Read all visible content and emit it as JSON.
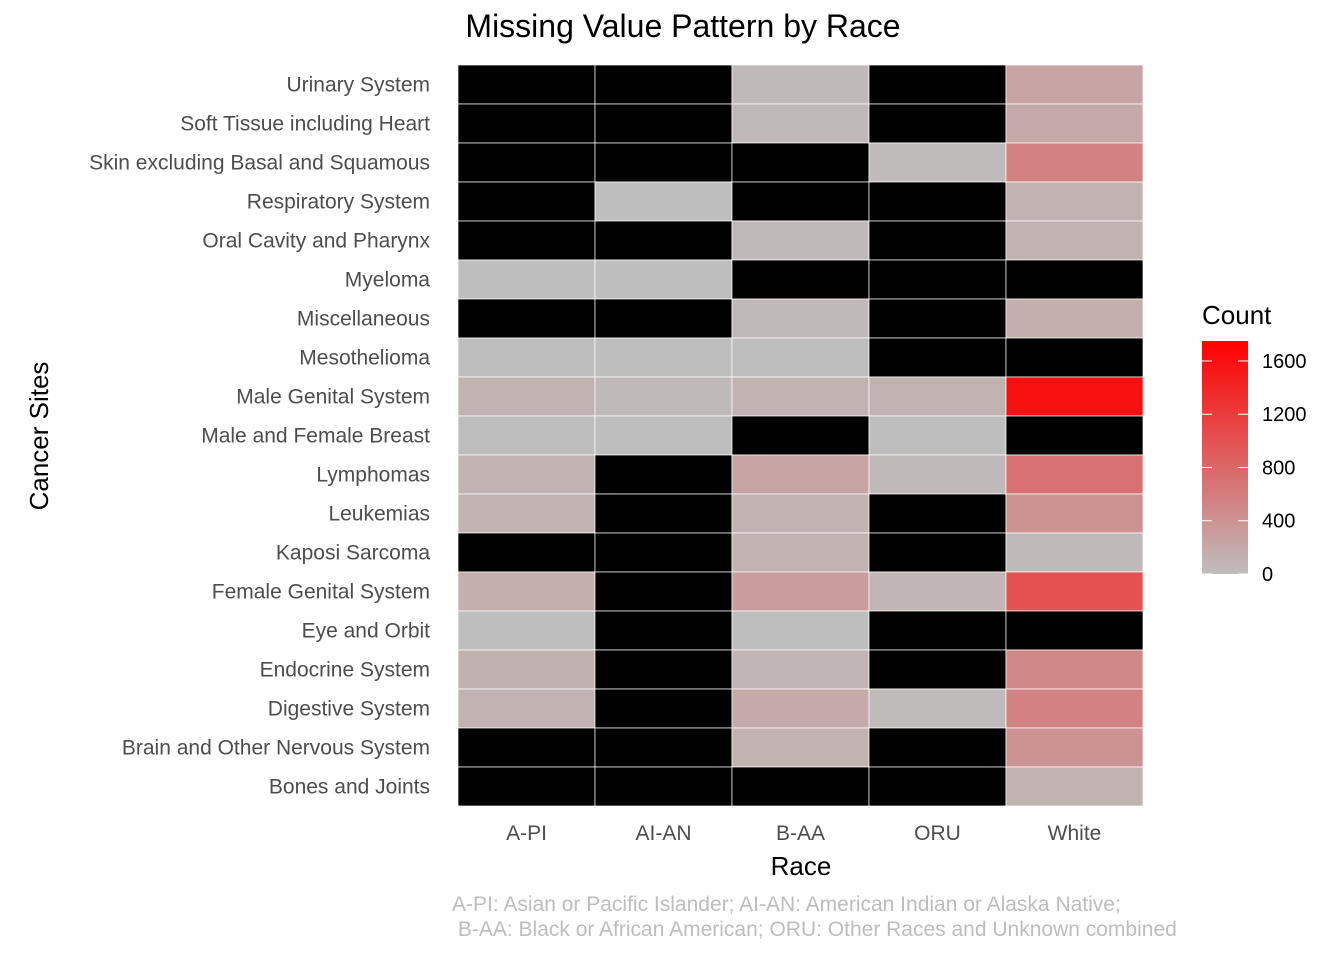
{
  "chart_data": {
    "type": "heatmap",
    "title": "Missing Value Pattern by Race",
    "xlabel": "Race",
    "ylabel": "Cancer Sites",
    "x": [
      "A-PI",
      "AI-AN",
      "B-AA",
      "ORU",
      "White"
    ],
    "y": [
      "Urinary System",
      "Soft Tissue including Heart",
      "Skin excluding Basal and Squamous",
      "Respiratory System",
      "Oral Cavity and Pharynx",
      "Myeloma",
      "Miscellaneous",
      "Mesothelioma",
      "Male Genital System",
      "Male and Female Breast",
      "Lymphomas",
      "Leukemias",
      "Kaposi Sarcoma",
      "Female Genital System",
      "Eye and Orbit",
      "Endocrine System",
      "Digestive System",
      "Brain and Other Nervous System",
      "Bones and Joints"
    ],
    "values": [
      [
        null,
        null,
        50,
        null,
        250
      ],
      [
        null,
        null,
        50,
        null,
        200
      ],
      [
        null,
        null,
        null,
        30,
        550
      ],
      [
        null,
        0,
        null,
        null,
        100
      ],
      [
        null,
        null,
        50,
        null,
        100
      ],
      [
        0,
        0,
        null,
        null,
        null
      ],
      [
        null,
        null,
        50,
        null,
        150
      ],
      [
        0,
        0,
        10,
        null,
        null
      ],
      [
        100,
        50,
        100,
        100,
        1600
      ],
      [
        0,
        0,
        null,
        0,
        null
      ],
      [
        100,
        null,
        250,
        50,
        700
      ],
      [
        100,
        null,
        100,
        null,
        400
      ],
      [
        null,
        null,
        100,
        null,
        50
      ],
      [
        150,
        null,
        300,
        80,
        1000
      ],
      [
        0,
        null,
        0,
        null,
        null
      ],
      [
        120,
        null,
        80,
        null,
        500
      ],
      [
        100,
        null,
        180,
        30,
        550
      ],
      [
        null,
        null,
        100,
        null,
        400
      ],
      [
        null,
        null,
        null,
        null,
        100
      ]
    ],
    "missing_color": "#000000",
    "legend": {
      "title": "Count",
      "ticks": [
        "0",
        "400",
        "800",
        "1200",
        "1600"
      ],
      "tick_values": [
        0,
        400,
        800,
        1200,
        1600
      ],
      "range": [
        0,
        1750
      ],
      "low_color": "#bebebe",
      "high_color": "#ff0000",
      "placement": "right"
    }
  },
  "caption_line1": "A-PI: Asian or Pacific Islander; AI-AN: American Indian or Alaska Native;",
  "caption_line2": " B-AA: Black or African American; ORU: Other Races and Unknown combined"
}
